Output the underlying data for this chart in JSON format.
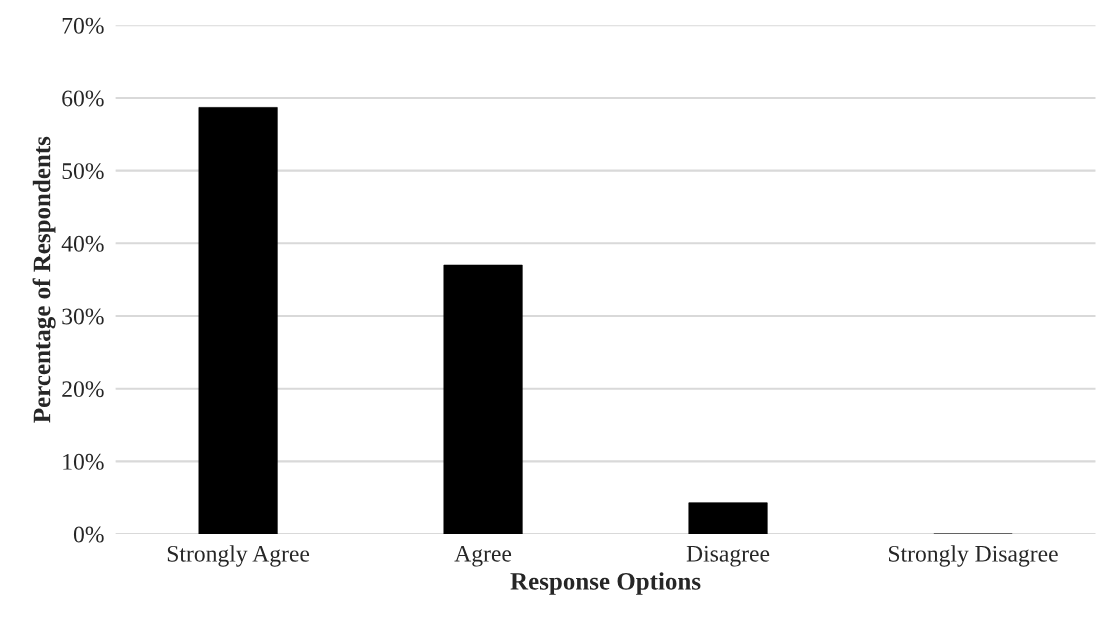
{
  "chart_data": {
    "type": "bar",
    "xlabel": "Response Options",
    "ylabel": "Percentage of Respondents",
    "categories": [
      "Strongly Agree",
      "Agree",
      "Disagree",
      "Strongly Disagree"
    ],
    "values": [
      58.7,
      37.0,
      4.3,
      0
    ],
    "color": "#000000",
    "ylim": [
      0,
      70
    ],
    "yticks": [
      {
        "value": 0,
        "label": "0%"
      },
      {
        "value": 10,
        "label": "10%"
      },
      {
        "value": 20,
        "label": "20%"
      },
      {
        "value": 30,
        "label": "30%"
      },
      {
        "value": 40,
        "label": "40%"
      },
      {
        "value": 50,
        "label": "50%"
      },
      {
        "value": 60,
        "label": "60%"
      },
      {
        "value": 70,
        "label": "70%"
      }
    ],
    "grid": "y"
  }
}
